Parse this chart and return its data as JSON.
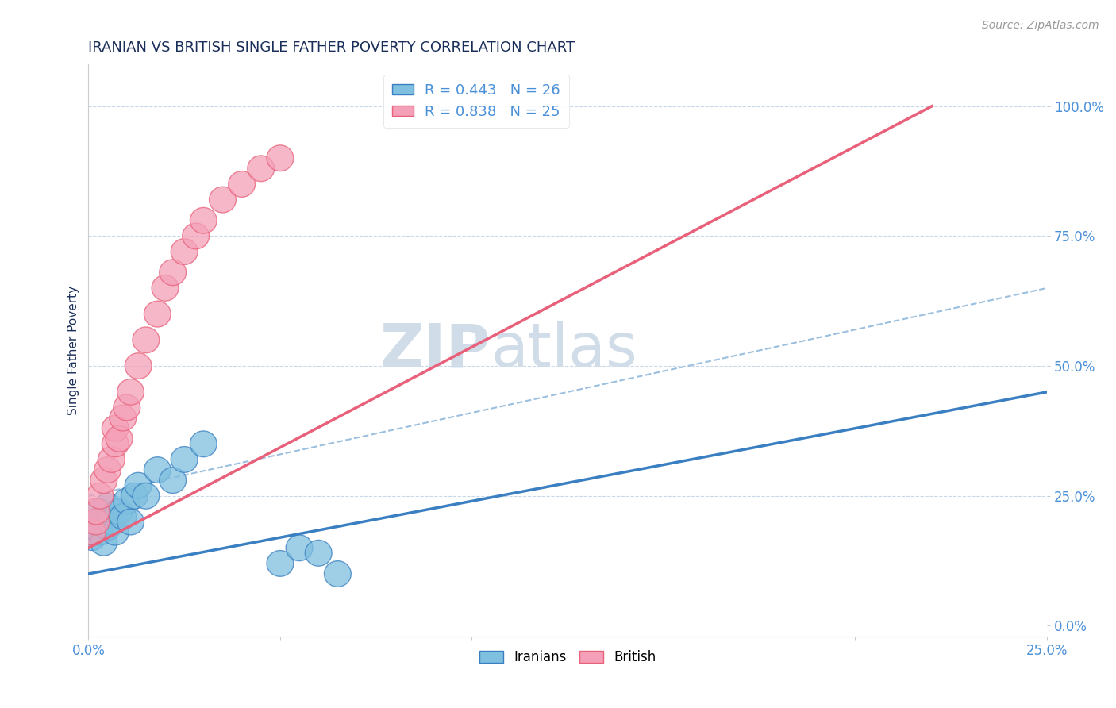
{
  "title": "IRANIAN VS BRITISH SINGLE FATHER POVERTY CORRELATION CHART",
  "source_text": "Source: ZipAtlas.com",
  "ylabel": "Single Father Poverty",
  "R_iranians": 0.443,
  "N_iranians": 26,
  "R_british": 0.838,
  "N_british": 25,
  "color_iranians": "#7fbfdf",
  "color_british": "#f4a0b8",
  "color_iranians_line": "#3a7fc1",
  "color_british_line": "#e8607a",
  "color_ref_line": "#9bbfdf",
  "xlim": [
    0.0,
    0.25
  ],
  "ylim": [
    -0.02,
    1.08
  ],
  "yticks": [
    0.0,
    0.25,
    0.5,
    0.75,
    1.0
  ],
  "ytick_labels": [
    "0.0%",
    "25.0%",
    "50.0%",
    "75.0%",
    "100.0%"
  ],
  "xticks": [
    0.0,
    0.05,
    0.1,
    0.15,
    0.2,
    0.25
  ],
  "xtick_labels": [
    "0.0%",
    "",
    "",
    "",
    "",
    "25.0%"
  ],
  "iranians_x": [
    0.001,
    0.002,
    0.002,
    0.003,
    0.003,
    0.004,
    0.004,
    0.005,
    0.005,
    0.006,
    0.007,
    0.008,
    0.009,
    0.01,
    0.011,
    0.012,
    0.013,
    0.015,
    0.018,
    0.022,
    0.025,
    0.03,
    0.05,
    0.055,
    0.06,
    0.065
  ],
  "iranians_y": [
    0.17,
    0.19,
    0.2,
    0.18,
    0.22,
    0.16,
    0.21,
    0.19,
    0.23,
    0.2,
    0.18,
    0.22,
    0.21,
    0.24,
    0.2,
    0.25,
    0.27,
    0.25,
    0.3,
    0.28,
    0.32,
    0.35,
    0.12,
    0.15,
    0.14,
    0.1
  ],
  "british_x": [
    0.001,
    0.002,
    0.002,
    0.003,
    0.004,
    0.005,
    0.006,
    0.007,
    0.007,
    0.008,
    0.009,
    0.01,
    0.011,
    0.013,
    0.015,
    0.018,
    0.02,
    0.022,
    0.025,
    0.028,
    0.03,
    0.035,
    0.04,
    0.045,
    0.05
  ],
  "british_y": [
    0.18,
    0.2,
    0.22,
    0.25,
    0.28,
    0.3,
    0.32,
    0.35,
    0.38,
    0.36,
    0.4,
    0.42,
    0.45,
    0.5,
    0.55,
    0.6,
    0.65,
    0.68,
    0.72,
    0.75,
    0.78,
    0.82,
    0.85,
    0.88,
    0.9
  ],
  "iran_line_x0": 0.0,
  "iran_line_y0": 0.1,
  "iran_line_x1": 0.25,
  "iran_line_y1": 0.45,
  "brit_line_x0": 0.0,
  "brit_line_y0": 0.15,
  "brit_line_x1": 0.22,
  "brit_line_y1": 1.0,
  "ref_line_x0": 0.0,
  "ref_line_y0": 0.25,
  "ref_line_x1": 0.25,
  "ref_line_y1": 0.65,
  "title_color": "#1a2e5a",
  "axis_label_color": "#1a2e5a",
  "tick_color": "#4a90d9",
  "source_color": "#999999",
  "watermark_zip": "ZIP",
  "watermark_atlas": "atlas",
  "watermark_color": "#d0dce8"
}
